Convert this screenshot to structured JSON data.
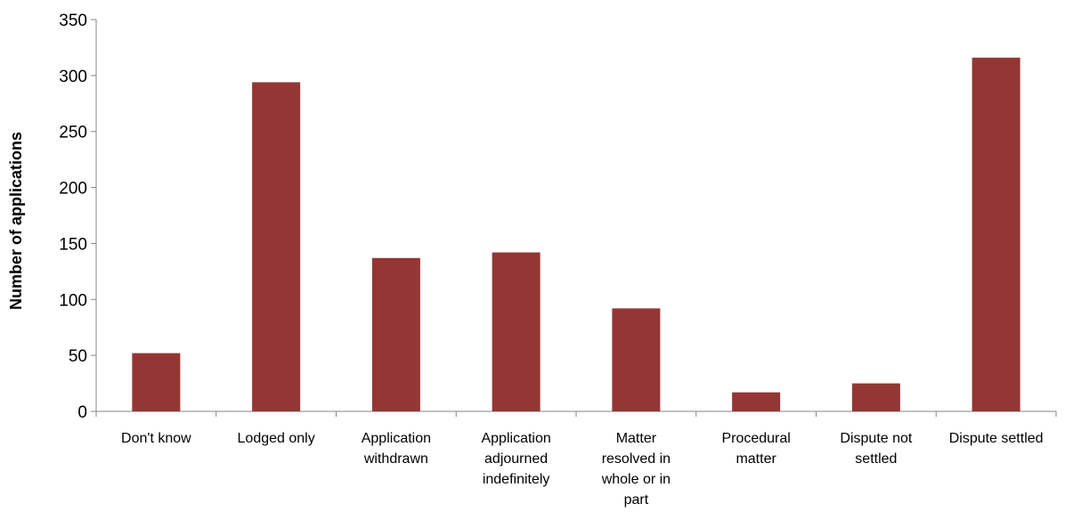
{
  "chart_data": {
    "type": "bar",
    "title": "",
    "xlabel": "",
    "ylabel": "Number of applications",
    "ylim": [
      0,
      350
    ],
    "yticks": [
      0,
      50,
      100,
      150,
      200,
      250,
      300,
      350
    ],
    "grid": false,
    "legend": "none",
    "bar_color": "#943634",
    "categories": [
      "Don't know",
      "Lodged only",
      "Application withdrawn",
      "Application adjourned indefinitely",
      "Matter resolved in whole or in part",
      "Procedural matter",
      "Dispute not settled",
      "Dispute settled"
    ],
    "category_lines": [
      [
        "Don't know"
      ],
      [
        "Lodged only"
      ],
      [
        "Application",
        "withdrawn"
      ],
      [
        "Application",
        "adjourned",
        "indefinitely"
      ],
      [
        "Matter",
        "resolved in",
        "whole or in",
        "part"
      ],
      [
        "Procedural",
        "matter"
      ],
      [
        "Dispute not",
        "settled"
      ],
      [
        "Dispute settled"
      ]
    ],
    "values": [
      52,
      294,
      137,
      142,
      92,
      17,
      25,
      316
    ]
  }
}
